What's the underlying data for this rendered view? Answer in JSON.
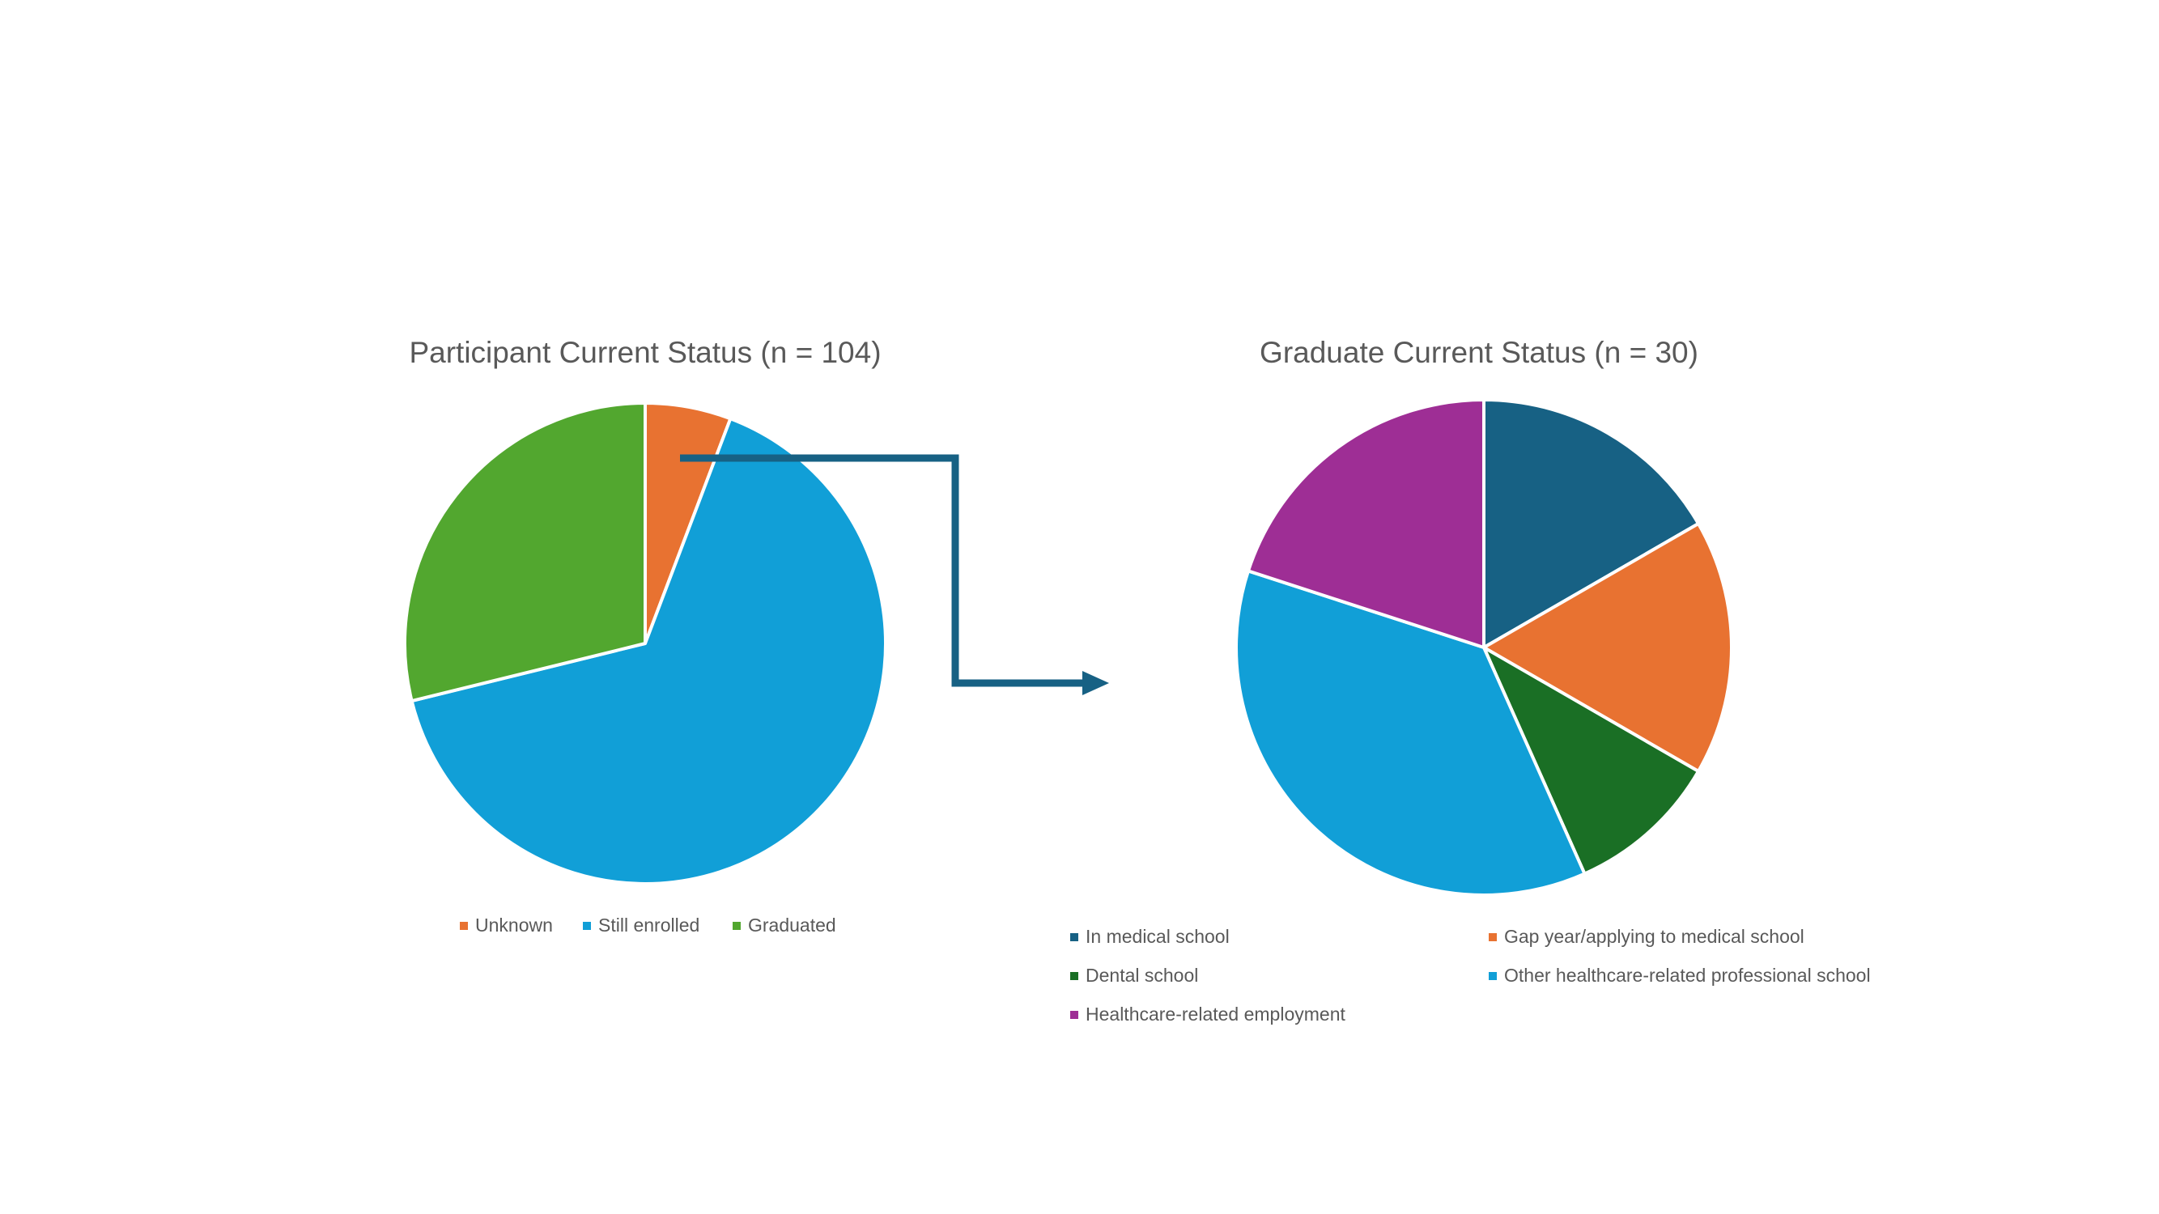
{
  "colors": {
    "unknown": "#E87231",
    "still_enrolled": "#119FD7",
    "graduated": "#52A72F",
    "in_medical_school": "#176184",
    "gap_year": "#E87231",
    "dental_school": "#1A6F25",
    "other_healthcare": "#119FD7",
    "healthcare_employment": "#9E2E95",
    "arrow": "#176184"
  },
  "chart_data": [
    {
      "type": "pie",
      "title": "Participant Current Status (n = 104)",
      "categories": [
        "Unknown",
        "Still enrolled",
        "Graduated"
      ],
      "values": [
        6,
        68,
        30
      ],
      "color_keys": [
        "unknown",
        "still_enrolled",
        "graduated"
      ],
      "legend_position": "bottom"
    },
    {
      "type": "pie",
      "title": "Graduate Current Status (n = 30)",
      "categories": [
        "In medical school",
        "Gap year/applying to medical school",
        "Dental school",
        "Other healthcare-related professional school",
        "Healthcare-related employment"
      ],
      "values": [
        5,
        5,
        3,
        11,
        6
      ],
      "color_keys": [
        "in_medical_school",
        "gap_year",
        "dental_school",
        "other_healthcare",
        "healthcare_employment"
      ],
      "legend_position": "bottom"
    }
  ]
}
